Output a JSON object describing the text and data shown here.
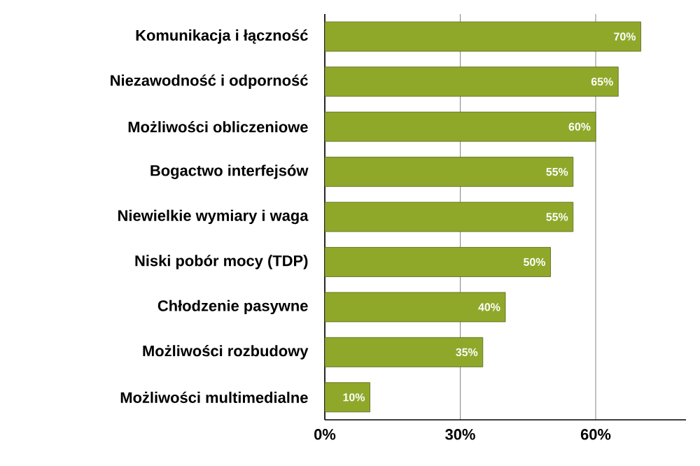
{
  "chart_data": {
    "type": "bar",
    "orientation": "horizontal",
    "categories": [
      "Komunikacja i łączność",
      "Niezawodność i odporność",
      "Możliwości obliczeniowe",
      "Bogactwo interfejsów",
      "Niewielkie wymiary i waga",
      "Niski pobór mocy (TDP)",
      "Chłodzenie pasywne",
      "Możliwości rozbudowy",
      "Możliwości multimedialne"
    ],
    "values": [
      70,
      65,
      60,
      55,
      55,
      50,
      40,
      35,
      10
    ],
    "value_labels": [
      "70%",
      "65%",
      "60%",
      "55%",
      "55%",
      "50%",
      "40%",
      "35%",
      "10%"
    ],
    "color": "#8fa82a",
    "xlim": [
      0,
      80
    ],
    "xticks": [
      {
        "value": 0,
        "label": "0%"
      },
      {
        "value": 30,
        "label": "30%"
      },
      {
        "value": 60,
        "label": "60%"
      }
    ],
    "grid": "x"
  }
}
